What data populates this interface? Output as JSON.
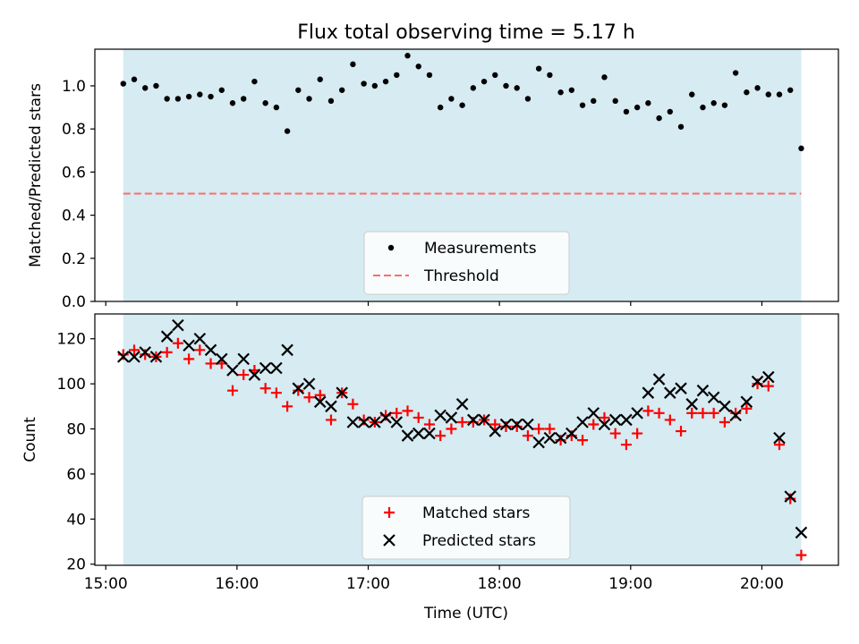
{
  "title": "Flux total observing time = 5.17 h",
  "colors": {
    "shade": "#add8e6",
    "measurement": "#000000",
    "threshold": "#ff6b6b",
    "matched": "#ff0000",
    "predicted": "#000000"
  },
  "chart_data": [
    {
      "type": "scatter",
      "ylabel": "Matched/Predicted stars",
      "ylim": [
        0,
        1.17
      ],
      "yticks": [
        0.0,
        0.2,
        0.4,
        0.6,
        0.8,
        1.0
      ],
      "ytick_labels": [
        "0.0",
        "0.2",
        "0.4",
        "0.6",
        "0.8",
        "1.0"
      ],
      "xlim": [
        "14:55",
        "20:35"
      ],
      "shaded_span": [
        "15:08",
        "20:18"
      ],
      "legend": {
        "position": "lower center",
        "entries": [
          "Measurements",
          "Threshold"
        ]
      },
      "threshold": {
        "name": "Threshold",
        "y": 0.5,
        "style": "dashed",
        "x": [
          "15:08",
          "20:18"
        ]
      },
      "series": [
        {
          "name": "Measurements",
          "marker": "dot",
          "x": [
            "15:08",
            "15:13",
            "15:18",
            "15:23",
            "15:28",
            "15:33",
            "15:38",
            "15:43",
            "15:48",
            "15:53",
            "15:58",
            "16:03",
            "16:08",
            "16:13",
            "16:18",
            "16:23",
            "16:28",
            "16:33",
            "16:38",
            "16:43",
            "16:48",
            "16:53",
            "16:58",
            "17:03",
            "17:08",
            "17:13",
            "17:18",
            "17:23",
            "17:28",
            "17:33",
            "17:38",
            "17:43",
            "17:48",
            "17:53",
            "17:58",
            "18:03",
            "18:08",
            "18:13",
            "18:18",
            "18:23",
            "18:28",
            "18:33",
            "18:38",
            "18:43",
            "18:48",
            "18:53",
            "18:58",
            "19:03",
            "19:08",
            "19:13",
            "19:18",
            "19:23",
            "19:28",
            "19:33",
            "19:38",
            "19:43",
            "19:48",
            "19:53",
            "19:58",
            "20:03",
            "20:08",
            "20:13",
            "20:18"
          ],
          "values": [
            1.01,
            1.03,
            0.99,
            1.0,
            0.94,
            0.94,
            0.95,
            0.96,
            0.95,
            0.98,
            0.92,
            0.94,
            1.02,
            0.92,
            0.9,
            0.79,
            0.98,
            0.94,
            1.03,
            0.93,
            0.98,
            1.1,
            1.01,
            1.0,
            1.02,
            1.05,
            1.14,
            1.09,
            1.05,
            0.9,
            0.94,
            0.91,
            0.99,
            1.02,
            1.05,
            1.0,
            0.99,
            0.94,
            1.08,
            1.05,
            0.97,
            0.98,
            0.91,
            0.93,
            1.04,
            0.93,
            0.88,
            0.9,
            0.92,
            0.85,
            0.88,
            0.81,
            0.96,
            0.9,
            0.92,
            0.91,
            1.06,
            0.97,
            0.99,
            0.96,
            0.96,
            0.98,
            0.71
          ]
        }
      ]
    },
    {
      "type": "scatter",
      "xlabel": "Time (UTC)",
      "ylabel": "Count",
      "ylim": [
        19.5,
        131
      ],
      "yticks": [
        20,
        40,
        60,
        80,
        100,
        120
      ],
      "ytick_labels": [
        "20",
        "40",
        "60",
        "80",
        "100",
        "120"
      ],
      "xlim": [
        "14:55",
        "20:35"
      ],
      "xticks": [
        "15:00",
        "16:00",
        "17:00",
        "18:00",
        "19:00",
        "20:00"
      ],
      "xtick_labels": [
        "15:00",
        "16:00",
        "17:00",
        "18:00",
        "19:00",
        "20:00"
      ],
      "shaded_span": [
        "15:08",
        "20:18"
      ],
      "legend": {
        "position": "lower center",
        "entries": [
          "Matched stars",
          "Predicted stars"
        ]
      },
      "x": [
        "15:08",
        "15:13",
        "15:18",
        "15:23",
        "15:28",
        "15:33",
        "15:38",
        "15:43",
        "15:48",
        "15:53",
        "15:58",
        "16:03",
        "16:08",
        "16:13",
        "16:18",
        "16:23",
        "16:28",
        "16:33",
        "16:38",
        "16:43",
        "16:48",
        "16:53",
        "16:58",
        "17:03",
        "17:08",
        "17:13",
        "17:18",
        "17:23",
        "17:28",
        "17:33",
        "17:38",
        "17:43",
        "17:48",
        "17:53",
        "17:58",
        "18:03",
        "18:08",
        "18:13",
        "18:18",
        "18:23",
        "18:28",
        "18:33",
        "18:38",
        "18:43",
        "18:48",
        "18:53",
        "18:58",
        "19:03",
        "19:08",
        "19:13",
        "19:18",
        "19:23",
        "19:28",
        "19:33",
        "19:38",
        "19:43",
        "19:48",
        "19:53",
        "19:58",
        "20:03",
        "20:08",
        "20:13",
        "20:18"
      ],
      "series": [
        {
          "name": "Matched stars",
          "marker": "plus",
          "values": [
            113,
            115,
            113,
            112,
            114,
            118,
            111,
            115,
            109,
            109,
            97,
            104,
            106,
            98,
            96,
            90,
            97,
            94,
            95,
            84,
            96,
            91,
            84,
            83,
            86,
            87,
            88,
            85,
            82,
            77,
            80,
            83,
            83,
            84,
            82,
            81,
            81,
            77,
            80,
            80,
            75,
            77,
            75,
            82,
            85,
            78,
            73,
            78,
            88,
            87,
            84,
            79,
            87,
            87,
            87,
            83,
            87,
            89,
            100,
            99,
            73,
            49,
            24
          ]
        },
        {
          "name": "Predicted stars",
          "marker": "x",
          "values": [
            112,
            112,
            114,
            112,
            121,
            126,
            117,
            120,
            115,
            111,
            106,
            111,
            104,
            107,
            107,
            115,
            98,
            100,
            92,
            90,
            96,
            83,
            83,
            83,
            85,
            83,
            77,
            78,
            78,
            86,
            85,
            91,
            84,
            84,
            79,
            82,
            82,
            82,
            74,
            76,
            76,
            78,
            83,
            87,
            82,
            84,
            84,
            87,
            96,
            102,
            96,
            98,
            91,
            97,
            94,
            90,
            86,
            92,
            101,
            103,
            76,
            50,
            34
          ]
        }
      ]
    }
  ]
}
